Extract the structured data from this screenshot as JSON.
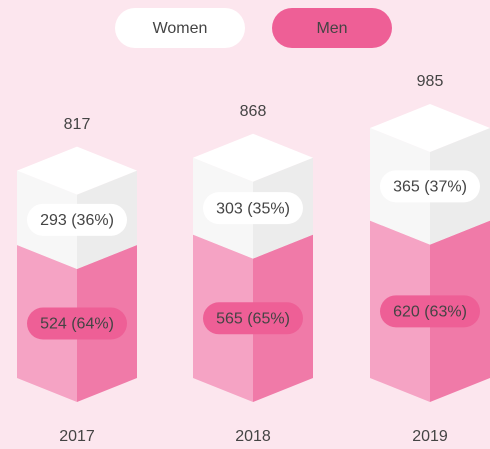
{
  "chart_data": {
    "type": "stacked-3d-bar",
    "categories": [
      "2017",
      "2018",
      "2019"
    ],
    "series": [
      {
        "name": "Women",
        "color": "#ffffff",
        "values": [
          293,
          303,
          365
        ],
        "value_labels": [
          "293 (36%)",
          "303 (35%)",
          "365 (37%)"
        ]
      },
      {
        "name": "Men",
        "color": "#f07aa8",
        "values": [
          524,
          565,
          620
        ],
        "value_labels": [
          "524 (64%)",
          "565 (65%)",
          "620 (63%)"
        ]
      }
    ],
    "totals": [
      817,
      868,
      985
    ]
  }
}
